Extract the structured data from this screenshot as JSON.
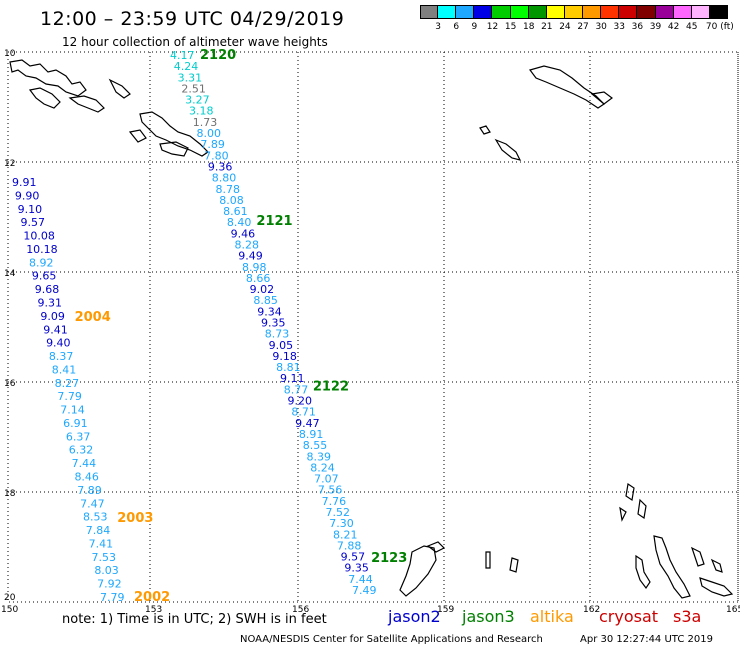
{
  "title": "12:00 – 23:59 UTC 04/29/2019",
  "subtitle": "12 hour collection of altimeter wave heights",
  "colorscale": {
    "labels": [
      "3",
      "6",
      "9",
      "12",
      "15",
      "18",
      "21",
      "24",
      "27",
      "30",
      "33",
      "36",
      "39",
      "42",
      "45",
      "70 (ft)"
    ],
    "colors": [
      "#808080",
      "#00ffff",
      "#1ea8ff",
      "#0000e6",
      "#00cc00",
      "#00ff00",
      "#009600",
      "#ffff00",
      "#ffcc00",
      "#ff9900",
      "#ff3300",
      "#cc0000",
      "#800000",
      "#990099",
      "#ff66ff",
      "#ffb3ff",
      "#000000"
    ]
  },
  "axes": {
    "lat_labels": [
      "10",
      "12",
      "14",
      "16",
      "18",
      "20"
    ],
    "lon_labels": [
      "150",
      "153",
      "156",
      "159",
      "162",
      "165"
    ]
  },
  "satellite_colors": {
    "jason2": "#0000cc",
    "jason3": "#008000",
    "altika": "#ff9900",
    "cryosat": "#cc0000",
    "s3a": "#cc0000",
    "gray": "#707070",
    "lightblue": "#1ea8ff",
    "cyan": "#00cccc"
  },
  "tracks": [
    {
      "time_labels": [
        {
          "text": "2120",
          "color": "jason3"
        },
        {
          "text": "2121",
          "color": "jason3"
        },
        {
          "text": "2122",
          "color": "jason3"
        },
        {
          "text": "2123",
          "color": "jason3"
        }
      ],
      "heights": [
        {
          "v": "4.17",
          "c": "cyan"
        },
        {
          "v": "4.24",
          "c": "cyan"
        },
        {
          "v": "3.31",
          "c": "cyan"
        },
        {
          "v": "2.51",
          "c": "gray"
        },
        {
          "v": "3.27",
          "c": "cyan"
        },
        {
          "v": "3.18",
          "c": "cyan"
        },
        {
          "v": "1.73",
          "c": "gray"
        },
        {
          "v": "8.00",
          "c": "lightblue"
        },
        {
          "v": "7.89",
          "c": "lightblue"
        },
        {
          "v": "7.80",
          "c": "lightblue"
        },
        {
          "v": "9.36",
          "c": "jason2"
        },
        {
          "v": "8.80",
          "c": "lightblue"
        },
        {
          "v": "8.78",
          "c": "lightblue"
        },
        {
          "v": "8.08",
          "c": "lightblue"
        },
        {
          "v": "8.61",
          "c": "lightblue"
        },
        {
          "v": "8.40",
          "c": "lightblue"
        },
        {
          "v": "9.46",
          "c": "jason2"
        },
        {
          "v": "8.28",
          "c": "lightblue"
        },
        {
          "v": "9.49",
          "c": "jason2"
        },
        {
          "v": "8.98",
          "c": "lightblue"
        },
        {
          "v": "8.66",
          "c": "lightblue"
        },
        {
          "v": "9.02",
          "c": "jason2"
        },
        {
          "v": "8.85",
          "c": "lightblue"
        },
        {
          "v": "9.34",
          "c": "jason2"
        },
        {
          "v": "9.35",
          "c": "jason2"
        },
        {
          "v": "8.73",
          "c": "lightblue"
        },
        {
          "v": "9.05",
          "c": "jason2"
        },
        {
          "v": "9.18",
          "c": "jason2"
        },
        {
          "v": "8.81",
          "c": "lightblue"
        },
        {
          "v": "9.11",
          "c": "jason2"
        },
        {
          "v": "8.77",
          "c": "lightblue"
        },
        {
          "v": "9.20",
          "c": "jason2"
        },
        {
          "v": "8.71",
          "c": "lightblue"
        },
        {
          "v": "9.47",
          "c": "jason2"
        },
        {
          "v": "8.91",
          "c": "lightblue"
        },
        {
          "v": "8.55",
          "c": "lightblue"
        },
        {
          "v": "8.39",
          "c": "lightblue"
        },
        {
          "v": "8.24",
          "c": "lightblue"
        },
        {
          "v": "7.07",
          "c": "lightblue"
        },
        {
          "v": "7.56",
          "c": "lightblue"
        },
        {
          "v": "7.76",
          "c": "lightblue"
        },
        {
          "v": "7.52",
          "c": "lightblue"
        },
        {
          "v": "7.30",
          "c": "lightblue"
        },
        {
          "v": "8.21",
          "c": "lightblue"
        },
        {
          "v": "7.88",
          "c": "lightblue"
        },
        {
          "v": "9.57",
          "c": "jason2"
        },
        {
          "v": "9.35",
          "c": "jason2"
        },
        {
          "v": "7.44",
          "c": "lightblue"
        },
        {
          "v": "7.49",
          "c": "lightblue"
        }
      ]
    },
    {
      "time_labels": [
        {
          "text": "2004",
          "color": "altika"
        },
        {
          "text": "2003",
          "color": "altika"
        },
        {
          "text": "2002",
          "color": "altika"
        }
      ],
      "heights": [
        {
          "v": "9.91",
          "c": "jason2"
        },
        {
          "v": "9.90",
          "c": "jason2"
        },
        {
          "v": "9.10",
          "c": "jason2"
        },
        {
          "v": "9.57",
          "c": "jason2"
        },
        {
          "v": "10.08",
          "c": "jason2"
        },
        {
          "v": "10.18",
          "c": "jason2"
        },
        {
          "v": "8.92",
          "c": "lightblue"
        },
        {
          "v": "9.65",
          "c": "jason2"
        },
        {
          "v": "9.68",
          "c": "jason2"
        },
        {
          "v": "9.31",
          "c": "jason2"
        },
        {
          "v": "9.09",
          "c": "jason2"
        },
        {
          "v": "9.41",
          "c": "jason2"
        },
        {
          "v": "9.40",
          "c": "jason2"
        },
        {
          "v": "8.37",
          "c": "lightblue"
        },
        {
          "v": "8.41",
          "c": "lightblue"
        },
        {
          "v": "8.27",
          "c": "lightblue"
        },
        {
          "v": "7.79",
          "c": "lightblue"
        },
        {
          "v": "7.14",
          "c": "lightblue"
        },
        {
          "v": "6.91",
          "c": "lightblue"
        },
        {
          "v": "6.37",
          "c": "lightblue"
        },
        {
          "v": "6.32",
          "c": "lightblue"
        },
        {
          "v": "7.44",
          "c": "lightblue"
        },
        {
          "v": "8.46",
          "c": "lightblue"
        },
        {
          "v": "7.89",
          "c": "lightblue"
        },
        {
          "v": "7.47",
          "c": "lightblue"
        },
        {
          "v": "8.53",
          "c": "lightblue"
        },
        {
          "v": "7.84",
          "c": "lightblue"
        },
        {
          "v": "7.41",
          "c": "lightblue"
        },
        {
          "v": "7.53",
          "c": "lightblue"
        },
        {
          "v": "8.03",
          "c": "lightblue"
        },
        {
          "v": "7.92",
          "c": "lightblue"
        },
        {
          "v": "7.79",
          "c": "lightblue"
        }
      ]
    }
  ],
  "note": "note:  1) Time is in UTC;  2) SWH is in feet",
  "legend": [
    {
      "label": "jason2",
      "color": "jason2"
    },
    {
      "label": "jason3",
      "color": "jason3"
    },
    {
      "label": "altika",
      "color": "altika"
    },
    {
      "label": "cryosat",
      "color": "cryosat"
    },
    {
      "label": "s3a",
      "color": "s3a"
    }
  ],
  "credit": "NOAA/NESDIS Center for Satellite Applications and Research",
  "timestamp": "Apr 30 12:27:44 UTC 2019"
}
